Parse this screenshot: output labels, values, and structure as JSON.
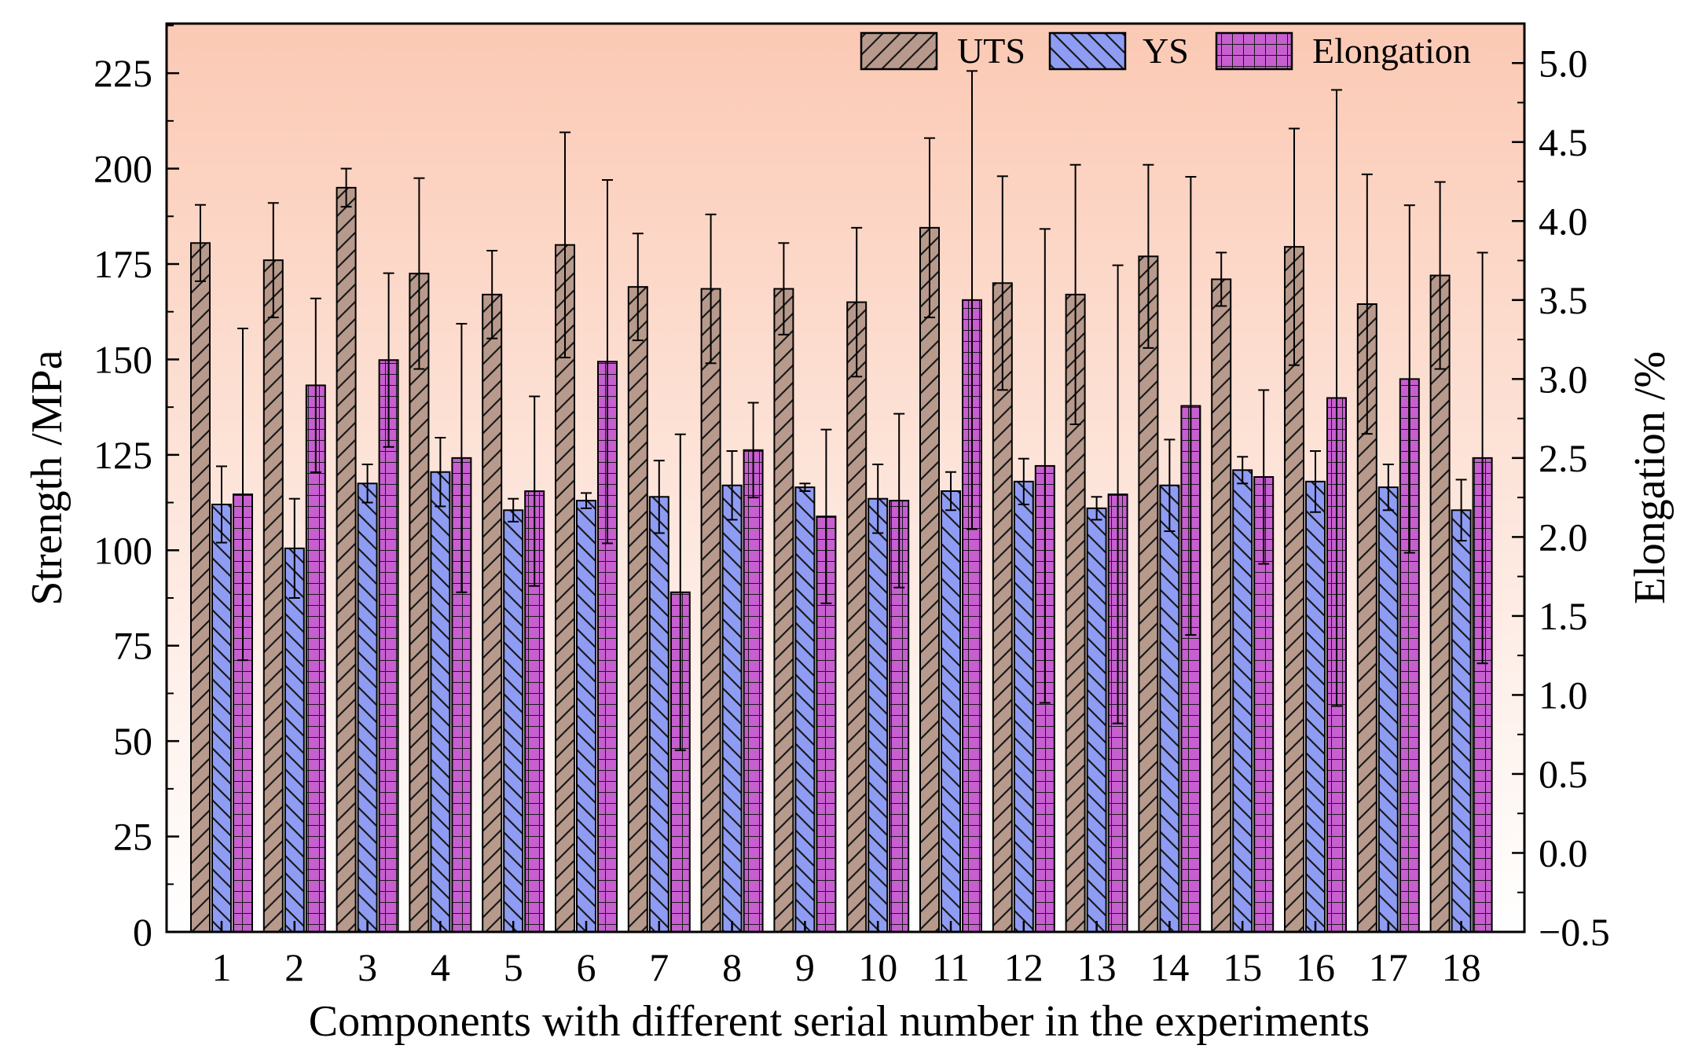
{
  "chart_data": {
    "type": "bar",
    "xlabel": "Components with different serial number in the experiments",
    "ylabel_left": "Strength /MPa",
    "ylabel_right": "Elongation /%",
    "ylim_left": [
      0,
      238
    ],
    "yticks_left": [
      "0",
      "25",
      "50",
      "75",
      "100",
      "125",
      "150",
      "175",
      "200",
      "225"
    ],
    "ylim_right": [
      -0.5,
      5.25
    ],
    "yticks_right": [
      "−0.5",
      "0.0",
      "0.5",
      "1.0",
      "1.5",
      "2.0",
      "2.5",
      "3.0",
      "3.5",
      "4.0",
      "4.5",
      "5.0"
    ],
    "categories": [
      "1",
      "2",
      "3",
      "4",
      "5",
      "6",
      "7",
      "8",
      "9",
      "10",
      "11",
      "12",
      "13",
      "14",
      "15",
      "16",
      "17",
      "18"
    ],
    "background": {
      "top": "#fbc9b4",
      "bottom": "#ffffff"
    },
    "series": [
      {
        "name": "UTS",
        "axis": "left",
        "color": "#b79a8c",
        "hatch": "forward",
        "values": [
          180.5,
          176,
          195,
          172.5,
          167,
          180,
          169,
          168.5,
          168.5,
          165,
          184.5,
          170,
          167,
          177,
          171,
          179.5,
          164.5,
          172
        ],
        "errors": [
          10,
          15,
          5,
          25,
          11.5,
          29.5,
          14,
          19.5,
          12,
          19.5,
          23.5,
          28,
          34,
          24,
          7,
          31,
          34,
          24.5
        ]
      },
      {
        "name": "YS",
        "axis": "left",
        "color": "#8f9cf3",
        "hatch": "backward",
        "values": [
          112,
          100.5,
          117.5,
          120.5,
          110.5,
          113,
          114,
          117,
          116.5,
          113.5,
          115.5,
          118,
          111,
          117,
          121,
          118,
          116.5,
          110.5
        ],
        "errors": [
          10,
          13,
          5,
          9,
          3,
          2,
          9.5,
          9,
          1,
          9,
          5,
          6,
          3,
          12,
          3.5,
          8,
          6,
          8
        ]
      },
      {
        "name": "Elongation",
        "axis": "right",
        "color": "#c75fd0",
        "hatch": "grid",
        "values": [
          2.27,
          2.96,
          3.12,
          2.5,
          2.29,
          3.11,
          1.65,
          2.55,
          2.13,
          2.23,
          3.5,
          2.45,
          2.27,
          2.83,
          2.38,
          2.88,
          3.0,
          2.5
        ],
        "errors": [
          1.05,
          0.55,
          0.55,
          0.85,
          0.6,
          1.15,
          1.0,
          0.3,
          0.55,
          0.55,
          1.45,
          1.5,
          1.45,
          1.45,
          0.55,
          1.95,
          1.1,
          1.3
        ]
      }
    ]
  }
}
